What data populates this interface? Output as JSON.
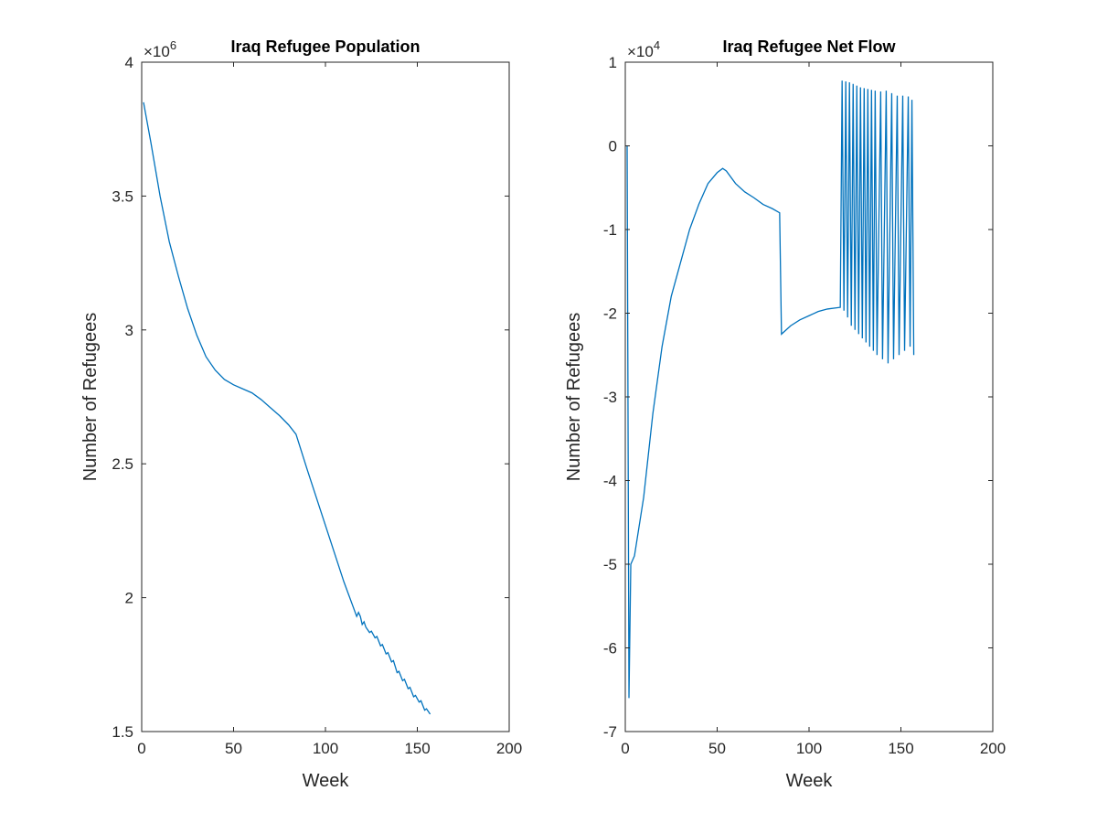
{
  "chart_data": [
    {
      "type": "line",
      "title": "Iraq Refugee Population",
      "xlabel": "Week",
      "ylabel": "Number of Refugees",
      "y_multiplier": {
        "base": "×10",
        "exponent": "6"
      },
      "xlim": [
        0,
        200
      ],
      "xticks": [
        0,
        50,
        100,
        150,
        200
      ],
      "ylim": [
        1.5,
        4
      ],
      "yticks": [
        1.5,
        2,
        2.5,
        3,
        3.5,
        4
      ],
      "color": "#0072bd",
      "x": [
        1,
        5,
        10,
        15,
        20,
        25,
        30,
        35,
        40,
        45,
        50,
        55,
        60,
        65,
        70,
        75,
        80,
        84,
        90,
        100,
        110,
        117,
        118,
        119,
        120,
        121,
        122,
        124,
        125,
        127,
        128,
        130,
        131,
        133,
        134,
        136,
        137,
        139,
        140,
        142,
        143,
        145,
        146,
        148,
        149,
        151,
        152,
        154,
        155,
        157
      ],
      "values": [
        3.85,
        3.7,
        3.5,
        3.33,
        3.2,
        3.08,
        2.98,
        2.9,
        2.85,
        2.815,
        2.795,
        2.78,
        2.765,
        2.74,
        2.71,
        2.68,
        2.645,
        2.61,
        2.48,
        2.27,
        2.06,
        1.93,
        1.945,
        1.93,
        1.9,
        1.91,
        1.89,
        1.87,
        1.875,
        1.85,
        1.855,
        1.82,
        1.825,
        1.79,
        1.795,
        1.76,
        1.765,
        1.72,
        1.725,
        1.69,
        1.695,
        1.66,
        1.665,
        1.63,
        1.635,
        1.61,
        1.615,
        1.58,
        1.585,
        1.565
      ]
    },
    {
      "type": "line",
      "title": "Iraq Refugee Net Flow",
      "xlabel": "Week",
      "ylabel": "Number of Refugees",
      "y_multiplier": {
        "base": "×10",
        "exponent": "4"
      },
      "xlim": [
        0,
        200
      ],
      "xticks": [
        0,
        50,
        100,
        150,
        200
      ],
      "ylim": [
        -7,
        1
      ],
      "yticks": [
        -7,
        -6,
        -5,
        -4,
        -3,
        -2,
        -1,
        0,
        1
      ],
      "color": "#0072bd",
      "x": [
        1,
        2,
        3,
        5,
        10,
        15,
        20,
        25,
        30,
        35,
        40,
        45,
        50,
        53,
        55,
        60,
        65,
        70,
        75,
        80,
        84,
        85,
        90,
        95,
        100,
        105,
        110,
        117,
        118,
        119,
        120,
        121,
        122,
        123,
        124,
        125,
        126,
        127,
        128,
        129,
        130,
        131,
        132,
        133,
        134,
        135,
        136,
        137,
        139,
        140,
        142,
        143,
        145,
        146,
        148,
        149,
        151,
        152,
        154,
        155,
        156,
        157
      ],
      "values": [
        0,
        -6.6,
        -5.0,
        -4.9,
        -4.2,
        -3.2,
        -2.4,
        -1.8,
        -1.4,
        -1.0,
        -0.7,
        -0.45,
        -0.32,
        -0.27,
        -0.3,
        -0.45,
        -0.55,
        -0.62,
        -0.7,
        -0.75,
        -0.8,
        -2.25,
        -2.15,
        -2.08,
        -2.03,
        -1.98,
        -1.95,
        -1.93,
        0.78,
        -1.97,
        0.77,
        -2.05,
        0.76,
        -2.15,
        0.74,
        -2.2,
        0.72,
        -2.25,
        0.7,
        -2.3,
        0.69,
        -2.35,
        0.68,
        -2.4,
        0.67,
        -2.45,
        0.66,
        -2.5,
        0.65,
        -2.55,
        0.66,
        -2.6,
        0.63,
        -2.55,
        0.6,
        -2.5,
        0.6,
        -2.45,
        0.59,
        -2.4,
        0.55,
        -2.5
      ]
    }
  ]
}
